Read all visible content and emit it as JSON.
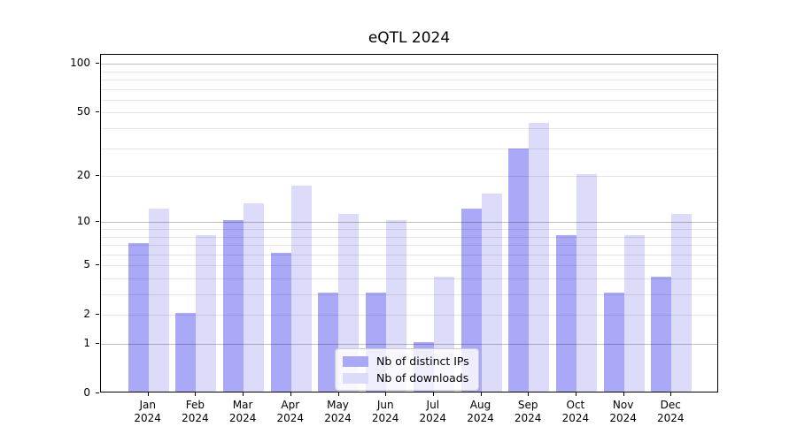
{
  "figure": {
    "background": "#ffffff"
  },
  "chart_data": {
    "type": "bar",
    "title": "eQTL 2024",
    "categories": [
      "Jan 2024",
      "Feb 2024",
      "Mar 2024",
      "Apr 2024",
      "May 2024",
      "Jun 2024",
      "Jul 2024",
      "Aug 2024",
      "Sep 2024",
      "Oct 2024",
      "Nov 2024",
      "Dec 2024"
    ],
    "series": [
      {
        "name": "Nb of distinct IPs",
        "color": "#a9a9f7",
        "values": [
          7,
          2,
          10,
          6,
          3,
          3,
          1,
          12,
          29,
          8,
          3,
          4
        ]
      },
      {
        "name": "Nb of downloads",
        "color": "#dcdcfa",
        "values": [
          12,
          8,
          13,
          17,
          11,
          10,
          4,
          15,
          42,
          20,
          8,
          11
        ]
      }
    ],
    "xlabel": "",
    "ylabel": "",
    "yscale": "log1p",
    "ylim": [
      0,
      113
    ],
    "y_tick_labels": [
      "0",
      "1",
      "2",
      "5",
      "10",
      "20",
      "50",
      "100"
    ],
    "y_tick_values": [
      0,
      1,
      2,
      5,
      10,
      20,
      50,
      100
    ],
    "y_major_gridlines": [
      1,
      10,
      100
    ],
    "y_minor_gridlines": [
      2,
      3,
      4,
      5,
      6,
      7,
      8,
      9,
      20,
      30,
      40,
      50,
      60,
      70,
      80,
      90
    ],
    "grid": true,
    "legend_position": "lower center"
  },
  "legend": {
    "items": [
      "Nb of distinct IPs",
      "Nb of downloads"
    ]
  },
  "colors": {
    "spine": "#000000",
    "major_grid": "rgba(0,0,0,0.25)",
    "minor_grid": "rgba(0,0,0,0.10)",
    "legend_border": "#cccccc",
    "legend_background": "rgba(255,255,255,0.8)",
    "tick_text": "#000000"
  }
}
